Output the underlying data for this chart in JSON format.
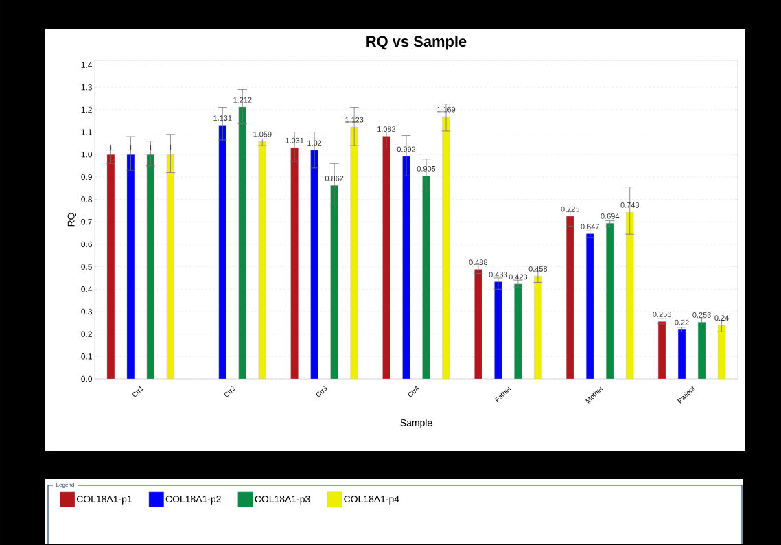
{
  "chart_data": {
    "type": "bar",
    "title": "RQ vs Sample",
    "xlabel": "Sample",
    "ylabel": "RQ",
    "legend_title": "Legend",
    "categories": [
      "Ctr1",
      "Ctr2",
      "Ctr3",
      "Ctr4",
      "Father",
      "Mother",
      "Patient"
    ],
    "series": [
      {
        "name": "COL18A1-p1",
        "color": "#b5161e",
        "values": [
          1,
          null,
          1.031,
          1.082,
          0.488,
          0.725,
          0.256
        ],
        "errors": [
          [
            0.96,
            1.02
          ],
          null,
          [
            0.97,
            1.1
          ],
          [
            1.03,
            1.1
          ],
          [
            0.47,
            0.51
          ],
          [
            0.68,
            0.745
          ],
          [
            0.245,
            0.27
          ]
        ]
      },
      {
        "name": "COL18A1-p2",
        "color": "#0000f5",
        "values": [
          1,
          1.131,
          1.02,
          0.992,
          0.433,
          0.647,
          0.22
        ],
        "errors": [
          [
            0.93,
            1.08
          ],
          [
            1.065,
            1.21
          ],
          [
            0.94,
            1.1
          ],
          [
            0.905,
            1.085
          ],
          [
            0.4,
            0.45
          ],
          [
            0.63,
            0.66
          ],
          [
            0.21,
            0.23
          ]
        ]
      },
      {
        "name": "COL18A1-p3",
        "color": "#0a8a44",
        "values": [
          1,
          1.212,
          0.862,
          0.905,
          0.423,
          0.694,
          0.253
        ],
        "errors": [
          [
            0.95,
            1.06
          ],
          [
            1.14,
            1.29
          ],
          [
            0.775,
            0.96
          ],
          [
            0.835,
            0.98
          ],
          [
            0.41,
            0.44
          ],
          [
            0.68,
            0.705
          ],
          [
            0.24,
            0.27
          ]
        ]
      },
      {
        "name": "COL18A1-p4",
        "color": "#eeee00",
        "values": [
          1,
          1.059,
          1.123,
          1.169,
          0.458,
          0.743,
          0.24
        ],
        "errors": [
          [
            0.92,
            1.09
          ],
          [
            1.04,
            1.07
          ],
          [
            1.04,
            1.21
          ],
          [
            1.105,
            1.225
          ],
          [
            0.43,
            0.48
          ],
          [
            0.645,
            0.855
          ],
          [
            0.21,
            0.26
          ]
        ]
      }
    ],
    "ylim": [
      0,
      1.42
    ],
    "yticks": [
      {
        "value": 0.0,
        "label": "0.0"
      },
      0.1,
      0.2,
      0.3,
      0.4,
      0.5,
      0.6,
      0.7,
      0.8,
      0.9,
      {
        "value": 1.0,
        "label": "1.0"
      },
      1.1,
      1.2,
      1.3,
      1.4
    ],
    "grid": "y",
    "legend": "bottom",
    "data_labels": true
  }
}
